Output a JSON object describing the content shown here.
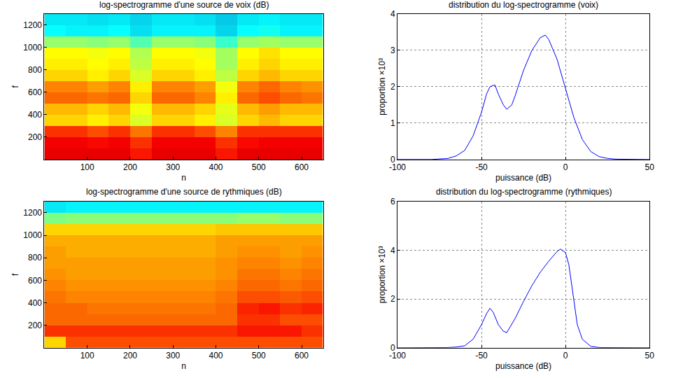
{
  "chart_data": [
    {
      "type": "heatmap",
      "title": "log-spectrogramme d'une source de voix (dB)",
      "x_label": "n",
      "y_label": "f",
      "x": [
        25,
        75,
        125,
        175,
        225,
        275,
        325,
        375,
        425,
        475,
        525,
        575,
        625
      ],
      "y": [
        50,
        150,
        250,
        350,
        450,
        550,
        650,
        750,
        850,
        950,
        1050,
        1150,
        1250
      ],
      "z": [
        [
          -5,
          -5,
          -5,
          -5,
          -8,
          -5,
          -5,
          -5,
          -8,
          -5,
          -5,
          -5,
          -5
        ],
        [
          -6,
          -6,
          -7,
          -6,
          -10,
          -6,
          -6,
          -6,
          -10,
          -7,
          -6,
          -6,
          -6
        ],
        [
          -10,
          -10,
          -12,
          -10,
          -15,
          -10,
          -10,
          -12,
          -16,
          -10,
          -10,
          -10,
          -10
        ],
        [
          -22,
          -22,
          -24,
          -22,
          -28,
          -22,
          -22,
          -24,
          -28,
          -22,
          -20,
          -22,
          -22
        ],
        [
          -20,
          -20,
          -22,
          -20,
          -26,
          -20,
          -20,
          -22,
          -27,
          -20,
          -18,
          -20,
          -20
        ],
        [
          -14,
          -14,
          -15,
          -14,
          -22,
          -14,
          -14,
          -16,
          -24,
          -14,
          -12,
          -14,
          -15
        ],
        [
          -16,
          -16,
          -18,
          -16,
          -24,
          -16,
          -16,
          -18,
          -26,
          -16,
          -14,
          -16,
          -17
        ],
        [
          -22,
          -22,
          -24,
          -22,
          -28,
          -22,
          -22,
          -24,
          -30,
          -22,
          -20,
          -22,
          -22
        ],
        [
          -24,
          -24,
          -25,
          -24,
          -30,
          -24,
          -24,
          -25,
          -32,
          -24,
          -22,
          -24,
          -24
        ],
        [
          -25,
          -25,
          -26,
          -25,
          -31,
          -25,
          -25,
          -26,
          -32,
          -25,
          -23,
          -25,
          -25
        ],
        [
          -33,
          -33,
          -34,
          -33,
          -38,
          -33,
          -33,
          -34,
          -40,
          -33,
          -32,
          -33,
          -33
        ],
        [
          -44,
          -45,
          -45,
          -44,
          -47,
          -45,
          -45,
          -45,
          -48,
          -44,
          -43,
          -45,
          -45
        ],
        [
          -46,
          -46,
          -47,
          -46,
          -48,
          -46,
          -46,
          -47,
          -49,
          -46,
          -45,
          -46,
          -46
        ]
      ],
      "zlim": [
        -72,
        3
      ],
      "xlim": [
        0,
        650
      ],
      "ylim": [
        0,
        1300
      ],
      "xticks": [
        100,
        200,
        300,
        400,
        500,
        600
      ],
      "yticks": [
        200,
        400,
        600,
        800,
        1000,
        1200
      ]
    },
    {
      "type": "line",
      "title": "distribution du log-spectrogramme (voix)",
      "x_label": "puissance (dB)",
      "y_label": "proportion ×10³",
      "x": [
        -100,
        -90,
        -80,
        -70,
        -65,
        -60,
        -55,
        -50,
        -47,
        -45,
        -42,
        -40,
        -37,
        -35,
        -32,
        -30,
        -25,
        -20,
        -15,
        -12,
        -10,
        -5,
        0,
        5,
        10,
        15,
        20,
        25,
        30,
        40,
        50
      ],
      "values": [
        0,
        0,
        0,
        0.03,
        0.1,
        0.25,
        0.65,
        1.3,
        1.8,
        2.0,
        2.05,
        1.8,
        1.5,
        1.38,
        1.5,
        1.75,
        2.45,
        3.0,
        3.35,
        3.42,
        3.3,
        2.75,
        1.95,
        1.15,
        0.55,
        0.22,
        0.08,
        0.03,
        0.01,
        0,
        0
      ],
      "color": "#0000ff",
      "xlim": [
        -100,
        50
      ],
      "ylim": [
        0,
        4
      ],
      "xticks": [
        -100,
        -50,
        0,
        50
      ],
      "yticks": [
        0,
        1,
        2,
        3,
        4
      ],
      "grid": true
    },
    {
      "type": "heatmap",
      "title": "log-spectrogramme d'une source de rythmiques (dB)",
      "x_label": "n",
      "y_label": "f",
      "x": [
        25,
        75,
        125,
        175,
        225,
        275,
        325,
        375,
        425,
        475,
        525,
        575,
        625
      ],
      "y": [
        50,
        150,
        250,
        350,
        450,
        550,
        650,
        750,
        850,
        950,
        1050,
        1150,
        1250
      ],
      "z": [
        [
          -22,
          -12,
          -12,
          -12,
          -12,
          -12,
          -12,
          -12,
          -12,
          -12,
          -12,
          -12,
          -12
        ],
        [
          -10,
          -10,
          -10,
          -10,
          -10,
          -10,
          -10,
          -10,
          -10,
          -8,
          -8,
          -8,
          -10
        ],
        [
          -14,
          -14,
          -14,
          -14,
          -14,
          -14,
          -14,
          -14,
          -14,
          -10,
          -10,
          -12,
          -12
        ],
        [
          -14,
          -14,
          -15,
          -15,
          -15,
          -15,
          -15,
          -15,
          -14,
          -9,
          -8,
          -10,
          -9
        ],
        [
          -15,
          -16,
          -16,
          -16,
          -16,
          -16,
          -16,
          -16,
          -15,
          -12,
          -12,
          -13,
          -12
        ],
        [
          -16,
          -17,
          -17,
          -17,
          -17,
          -17,
          -17,
          -17,
          -16,
          -14,
          -14,
          -15,
          -14
        ],
        [
          -17,
          -18,
          -18,
          -18,
          -18,
          -18,
          -18,
          -18,
          -17,
          -15,
          -15,
          -16,
          -15
        ],
        [
          -18,
          -18,
          -18,
          -18,
          -18,
          -18,
          -18,
          -18,
          -17,
          -16,
          -16,
          -17,
          -16
        ],
        [
          -18,
          -19,
          -19,
          -19,
          -19,
          -19,
          -19,
          -19,
          -18,
          -17,
          -17,
          -18,
          -17
        ],
        [
          -19,
          -19,
          -19,
          -19,
          -19,
          -19,
          -19,
          -19,
          -18,
          -18,
          -18,
          -18,
          -18
        ],
        [
          -22,
          -22,
          -22,
          -22,
          -22,
          -22,
          -22,
          -22,
          -21,
          -21,
          -21,
          -21,
          -21
        ],
        [
          -35,
          -34,
          -34,
          -34,
          -34,
          -34,
          -34,
          -34,
          -34,
          -33,
          -33,
          -34,
          -34
        ],
        [
          -46,
          -45,
          -45,
          -45,
          -45,
          -45,
          -45,
          -45,
          -45,
          -45,
          -45,
          -45,
          -45
        ]
      ],
      "zlim": [
        -72,
        3
      ],
      "xlim": [
        0,
        650
      ],
      "ylim": [
        0,
        1300
      ],
      "xticks": [
        100,
        200,
        300,
        400,
        500,
        600
      ],
      "yticks": [
        200,
        400,
        600,
        800,
        1000,
        1200
      ]
    },
    {
      "type": "line",
      "title": "distribution du log-spectrogramme (rythmiques)",
      "x_label": "puissance (dB)",
      "y_label": "proportion ×10³",
      "x": [
        -100,
        -90,
        -80,
        -70,
        -65,
        -60,
        -55,
        -50,
        -47,
        -45,
        -43,
        -40,
        -37,
        -35,
        -30,
        -25,
        -20,
        -15,
        -10,
        -5,
        -3,
        0,
        2,
        5,
        7,
        10,
        15,
        20,
        30,
        40,
        50
      ],
      "values": [
        0,
        0,
        0,
        0.01,
        0.03,
        0.08,
        0.35,
        0.95,
        1.4,
        1.62,
        1.45,
        0.95,
        0.68,
        0.62,
        1.2,
        1.9,
        2.55,
        3.1,
        3.55,
        3.95,
        4.05,
        3.9,
        3.4,
        1.9,
        0.95,
        0.35,
        0.06,
        0.01,
        0,
        0,
        0
      ],
      "color": "#0000ff",
      "xlim": [
        -100,
        50
      ],
      "ylim": [
        0,
        6
      ],
      "xticks": [
        -100,
        -50,
        0,
        50
      ],
      "yticks": [
        0,
        2,
        4,
        6
      ],
      "grid": true
    }
  ]
}
